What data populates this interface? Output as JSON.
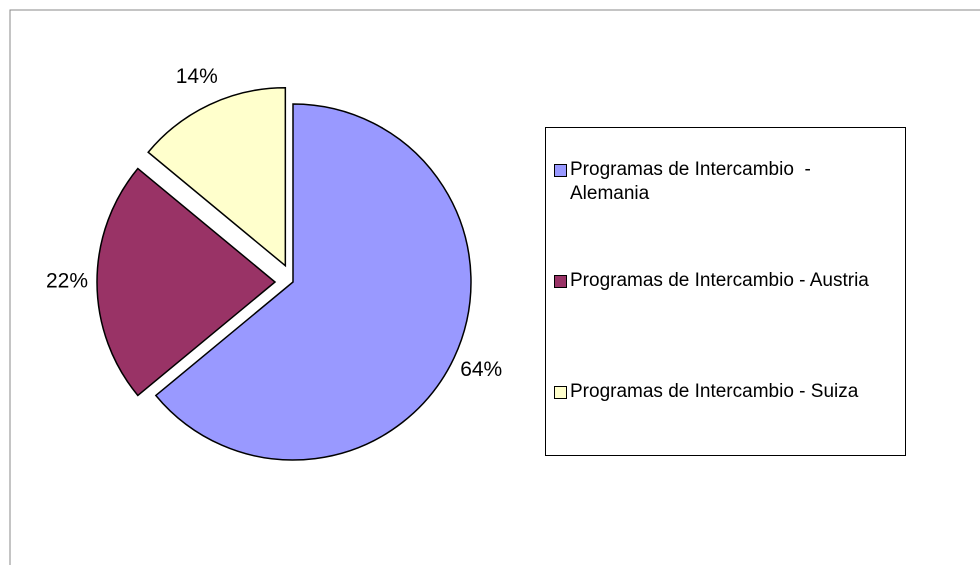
{
  "chart_data": {
    "type": "pie",
    "categories": [
      "Programas de Intercambio  - Alemania",
      "Programas de Intercambio - Austria",
      "Programas de Intercambio - Suiza"
    ],
    "values": [
      64,
      22,
      14
    ],
    "value_labels": [
      "64%",
      "22%",
      "14%"
    ],
    "colors": [
      "#9999ff",
      "#993366",
      "#ffffcc"
    ],
    "legend": "right"
  }
}
